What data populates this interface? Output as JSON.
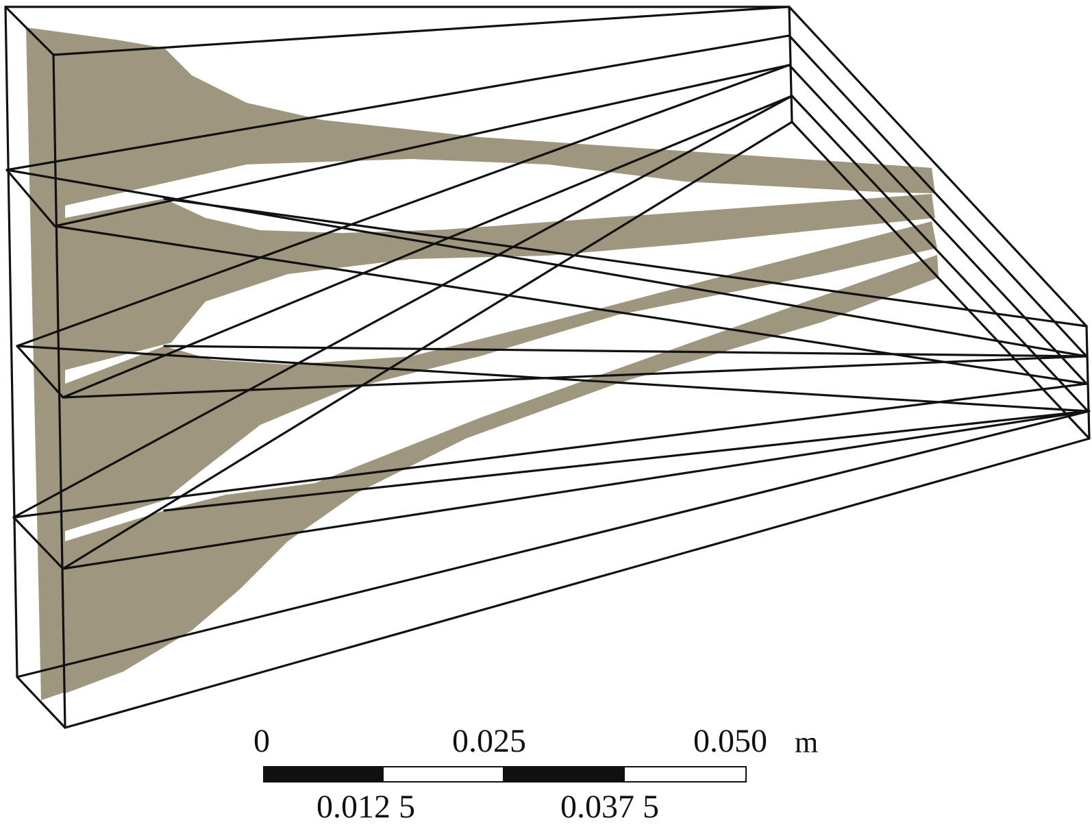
{
  "colors": {
    "material": "#9e967e",
    "edges": "#111111",
    "background": "#ffffff"
  },
  "scale_bar": {
    "top_labels": [
      "0",
      "0.025",
      "0.050"
    ],
    "bottom_labels": [
      "0.012 5",
      "0.037 5"
    ],
    "unit": "m",
    "segment_fills": [
      "black",
      "white",
      "black",
      "white"
    ]
  }
}
